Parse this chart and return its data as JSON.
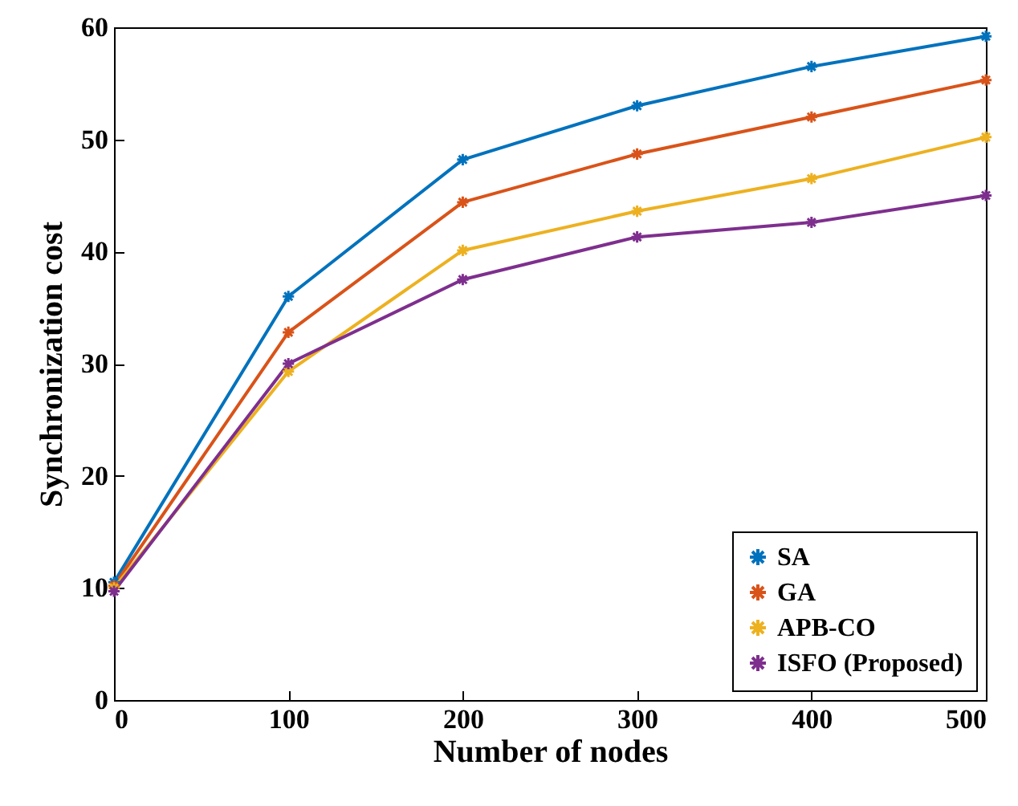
{
  "chart_data": {
    "type": "line",
    "xlabel": "Number of nodes",
    "ylabel": "Synchronization cost",
    "x": [
      0,
      100,
      200,
      300,
      400,
      500
    ],
    "series": [
      {
        "name": "SA",
        "color": "#0072bd",
        "values": [
          10.5,
          36,
          48.2,
          53,
          56.5,
          59.2
        ]
      },
      {
        "name": "GA",
        "color": "#d95319",
        "values": [
          10.2,
          32.8,
          44.4,
          48.7,
          52,
          55.3
        ]
      },
      {
        "name": "APB-CO",
        "color": "#edb120",
        "values": [
          10,
          29.3,
          40.1,
          43.6,
          46.5,
          50.2
        ]
      },
      {
        "name": "ISFO (Proposed)",
        "color": "#7e2f8e",
        "values": [
          9.7,
          30,
          37.5,
          41.3,
          42.6,
          45
        ]
      }
    ],
    "xlim": [
      0,
      500
    ],
    "xticks": [
      0,
      100,
      200,
      300,
      400,
      500
    ],
    "ylim": [
      0,
      60
    ],
    "yticks": [
      0,
      10,
      20,
      30,
      40,
      50,
      60
    ],
    "grid": false,
    "legend": "bottom right",
    "marker": "cross",
    "line_style": "solid"
  }
}
